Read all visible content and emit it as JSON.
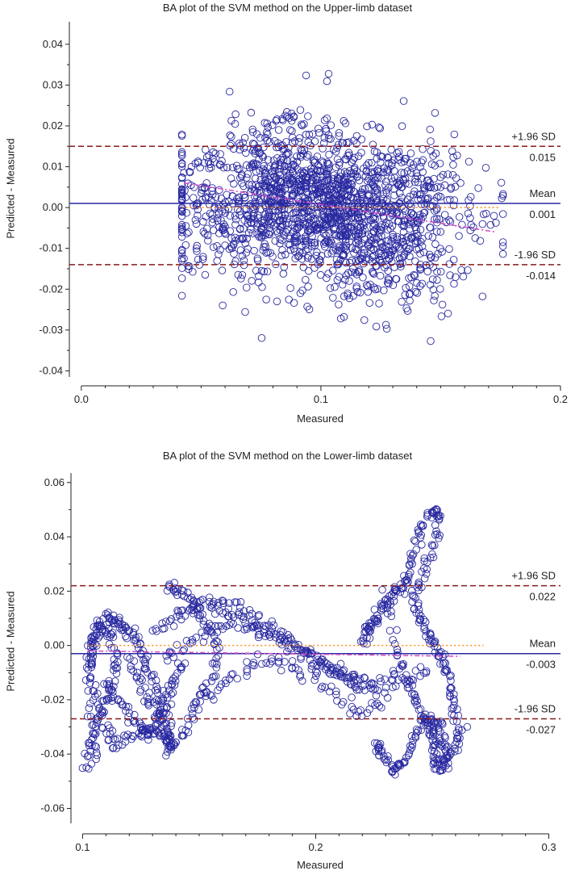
{
  "chart_data": [
    {
      "type": "scatter",
      "title": "BA plot of the SVM method on the Upper-limb dataset",
      "xlabel": "Measured",
      "ylabel": "Predicted - Measured",
      "xlim": [
        -0.005,
        0.2
      ],
      "ylim": [
        -0.0415,
        0.0455
      ],
      "xticks": [
        0.0,
        0.1,
        0.2
      ],
      "xtick_labels": [
        "0.0",
        "0.1",
        "0.2"
      ],
      "yticks": [
        -0.04,
        -0.03,
        -0.02,
        -0.01,
        0.0,
        0.01,
        0.02,
        0.03,
        0.04
      ],
      "ytick_labels": [
        "-0.04",
        "-0.03",
        "-0.02",
        "-0.01",
        "0.00",
        "0.01",
        "0.02",
        "0.03",
        "0.04"
      ],
      "grid": false,
      "lines": {
        "mean": {
          "y": 0.001,
          "label": "Mean",
          "value_label": "0.001",
          "color": "#2929a0",
          "style": "solid"
        },
        "upper_loa": {
          "y": 0.015,
          "label": "+1.96 SD",
          "value_label": "0.015",
          "color": "#8b1a1a",
          "style": "dashed"
        },
        "lower_loa": {
          "y": -0.014,
          "label": "-1.96 SD",
          "value_label": "-0.014",
          "color": "#8b1a1a",
          "style": "dashed"
        },
        "zero": {
          "y": 0.0,
          "x_range": [
            0.042,
            0.175
          ],
          "color": "#ff8c1a",
          "style": "dotted"
        },
        "regression": {
          "x": [
            0.043,
            0.173
          ],
          "y": [
            0.006,
            -0.006
          ],
          "color": "#d84fc8",
          "style": "dash-dot"
        }
      },
      "scatter_cloud": {
        "x_range": [
          0.042,
          0.176
        ],
        "count": 1800,
        "regions": [
          {
            "x": 0.1,
            "y": 0.0,
            "sx": 0.03,
            "sy": 0.0085,
            "w": 0.8
          },
          {
            "x": 0.085,
            "y": 0.01,
            "sx": 0.015,
            "sy": 0.007,
            "w": 0.1
          },
          {
            "x": 0.125,
            "y": -0.012,
            "sx": 0.015,
            "sy": 0.007,
            "w": 0.1
          }
        ]
      },
      "marker_color": "#2929a0"
    },
    {
      "type": "scatter",
      "title": "BA plot of the SVM method on the Lower-limb dataset",
      "xlabel": "Measured",
      "ylabel": "Predicted - Measured",
      "xlim": [
        0.095,
        0.305
      ],
      "ylim": [
        -0.0655,
        0.0635
      ],
      "xticks": [
        0.1,
        0.2,
        0.3
      ],
      "xtick_labels": [
        "0.1",
        "0.2",
        "0.3"
      ],
      "yticks": [
        -0.06,
        -0.04,
        -0.02,
        0.0,
        0.02,
        0.04,
        0.06
      ],
      "ytick_labels": [
        "-0.06",
        "-0.04",
        "-0.02",
        "0.00",
        "0.02",
        "0.04",
        "0.06"
      ],
      "grid": false,
      "lines": {
        "mean": {
          "y": -0.003,
          "label": "Mean",
          "value_label": "-0.003",
          "color": "#2929a0",
          "style": "solid"
        },
        "upper_loa": {
          "y": 0.022,
          "label": "+1.96 SD",
          "value_label": "0.022",
          "color": "#8b1a1a",
          "style": "dashed"
        },
        "lower_loa": {
          "y": -0.027,
          "label": "-1.96 SD",
          "value_label": "-0.027",
          "color": "#8b1a1a",
          "style": "dashed"
        },
        "zero": {
          "y": 0.0,
          "x_range": [
            0.102,
            0.272
          ],
          "color": "#ff8c1a",
          "style": "dotted"
        },
        "regression": {
          "x": [
            0.102,
            0.262
          ],
          "y": [
            -0.002,
            -0.004
          ],
          "color": "#d84fc8",
          "style": "dash-dot"
        }
      },
      "traces": [
        {
          "x": [
            0.102,
            0.103,
            0.106,
            0.11,
            0.113,
            0.114,
            0.112,
            0.108,
            0.104,
            0.103,
            0.106,
            0.11,
            0.113,
            0.12,
            0.128,
            0.135,
            0.138,
            0.136,
            0.132,
            0.128,
            0.125,
            0.122,
            0.118,
            0.115,
            0.112,
            0.109,
            0.106,
            0.104,
            0.103,
            0.104,
            0.106
          ],
          "y": [
            -0.045,
            -0.037,
            -0.028,
            -0.02,
            -0.012,
            -0.003,
            0.003,
            0.005,
            0.002,
            -0.008,
            -0.02,
            -0.03,
            -0.037,
            -0.034,
            -0.03,
            -0.033,
            -0.037,
            -0.025,
            -0.015,
            -0.008,
            -0.002,
            0.004,
            0.007,
            0.009,
            0.01,
            0.009,
            0.006,
            0.0,
            -0.01,
            -0.03,
            -0.044
          ]
        },
        {
          "x": [
            0.12,
            0.124,
            0.128,
            0.132,
            0.135,
            0.137,
            0.14,
            0.145,
            0.15,
            0.155,
            0.158,
            0.155,
            0.15,
            0.145,
            0.14,
            0.137
          ],
          "y": [
            -0.005,
            -0.012,
            -0.02,
            -0.026,
            -0.03,
            -0.038,
            -0.036,
            -0.028,
            -0.02,
            -0.012,
            -0.002,
            0.006,
            0.012,
            0.018,
            0.021,
            0.021
          ]
        },
        {
          "x": [
            0.11,
            0.115,
            0.12,
            0.125,
            0.128,
            0.131,
            0.134,
            0.137,
            0.14,
            0.143
          ],
          "y": [
            -0.015,
            -0.02,
            -0.025,
            -0.03,
            -0.033,
            -0.03,
            -0.024,
            -0.018,
            -0.012,
            -0.006
          ]
        },
        {
          "x": [
            0.14,
            0.15,
            0.16,
            0.17,
            0.18,
            0.19,
            0.2,
            0.21,
            0.22,
            0.23,
            0.24,
            0.25
          ],
          "y": [
            0.01,
            0.015,
            0.012,
            0.01,
            0.005,
            0.0,
            -0.005,
            -0.01,
            -0.015,
            -0.018,
            -0.012,
            -0.01
          ]
        },
        {
          "x": [
            0.135,
            0.145,
            0.155,
            0.165,
            0.175,
            0.185,
            0.195,
            0.205,
            0.215,
            0.225,
            0.235
          ],
          "y": [
            -0.005,
            0.0,
            0.005,
            0.008,
            0.005,
            0.002,
            -0.003,
            -0.008,
            -0.012,
            -0.014,
            -0.01
          ]
        },
        {
          "x": [
            0.13,
            0.14,
            0.15,
            0.16,
            0.17,
            0.18,
            0.19,
            0.2,
            0.21,
            0.22
          ],
          "y": [
            0.005,
            0.01,
            0.016,
            0.017,
            0.012,
            0.007,
            0.002,
            -0.004,
            -0.01,
            -0.016
          ]
        },
        {
          "x": [
            0.15,
            0.16,
            0.17,
            0.18,
            0.19,
            0.2,
            0.21,
            0.22,
            0.23
          ],
          "y": [
            -0.02,
            -0.015,
            -0.008,
            -0.005,
            -0.008,
            -0.012,
            -0.02,
            -0.025,
            -0.022
          ]
        },
        {
          "x": [
            0.22,
            0.222,
            0.224,
            0.226,
            0.229,
            0.232,
            0.235,
            0.238,
            0.24,
            0.242,
            0.245,
            0.25,
            0.253,
            0.252,
            0.248,
            0.244,
            0.242,
            0.245,
            0.248,
            0.251,
            0.254,
            0.256,
            0.258,
            0.26,
            0.262,
            0.26,
            0.255
          ],
          "y": [
            0.0,
            0.005,
            0.008,
            0.01,
            0.014,
            0.018,
            0.02,
            0.022,
            0.028,
            0.035,
            0.044,
            0.05,
            0.048,
            0.04,
            0.03,
            0.022,
            0.015,
            0.01,
            0.005,
            0.0,
            -0.005,
            -0.01,
            -0.018,
            -0.025,
            -0.032,
            -0.038,
            -0.045
          ]
        },
        {
          "x": [
            0.225,
            0.228,
            0.232,
            0.235,
            0.238,
            0.242,
            0.246,
            0.25,
            0.253,
            0.255,
            0.256,
            0.255,
            0.252,
            0.25
          ],
          "y": [
            -0.035,
            -0.04,
            -0.044,
            -0.046,
            -0.042,
            -0.034,
            -0.028,
            -0.028,
            -0.03,
            -0.035,
            -0.04,
            -0.045,
            -0.045,
            -0.04
          ]
        },
        {
          "x": [
            0.23,
            0.234,
            0.238,
            0.242,
            0.245,
            0.248,
            0.25,
            0.252
          ],
          "y": [
            0.02,
            0.0,
            -0.01,
            -0.018,
            -0.025,
            -0.03,
            -0.035,
            -0.04
          ]
        }
      ],
      "marker_color": "#2929a0"
    }
  ]
}
